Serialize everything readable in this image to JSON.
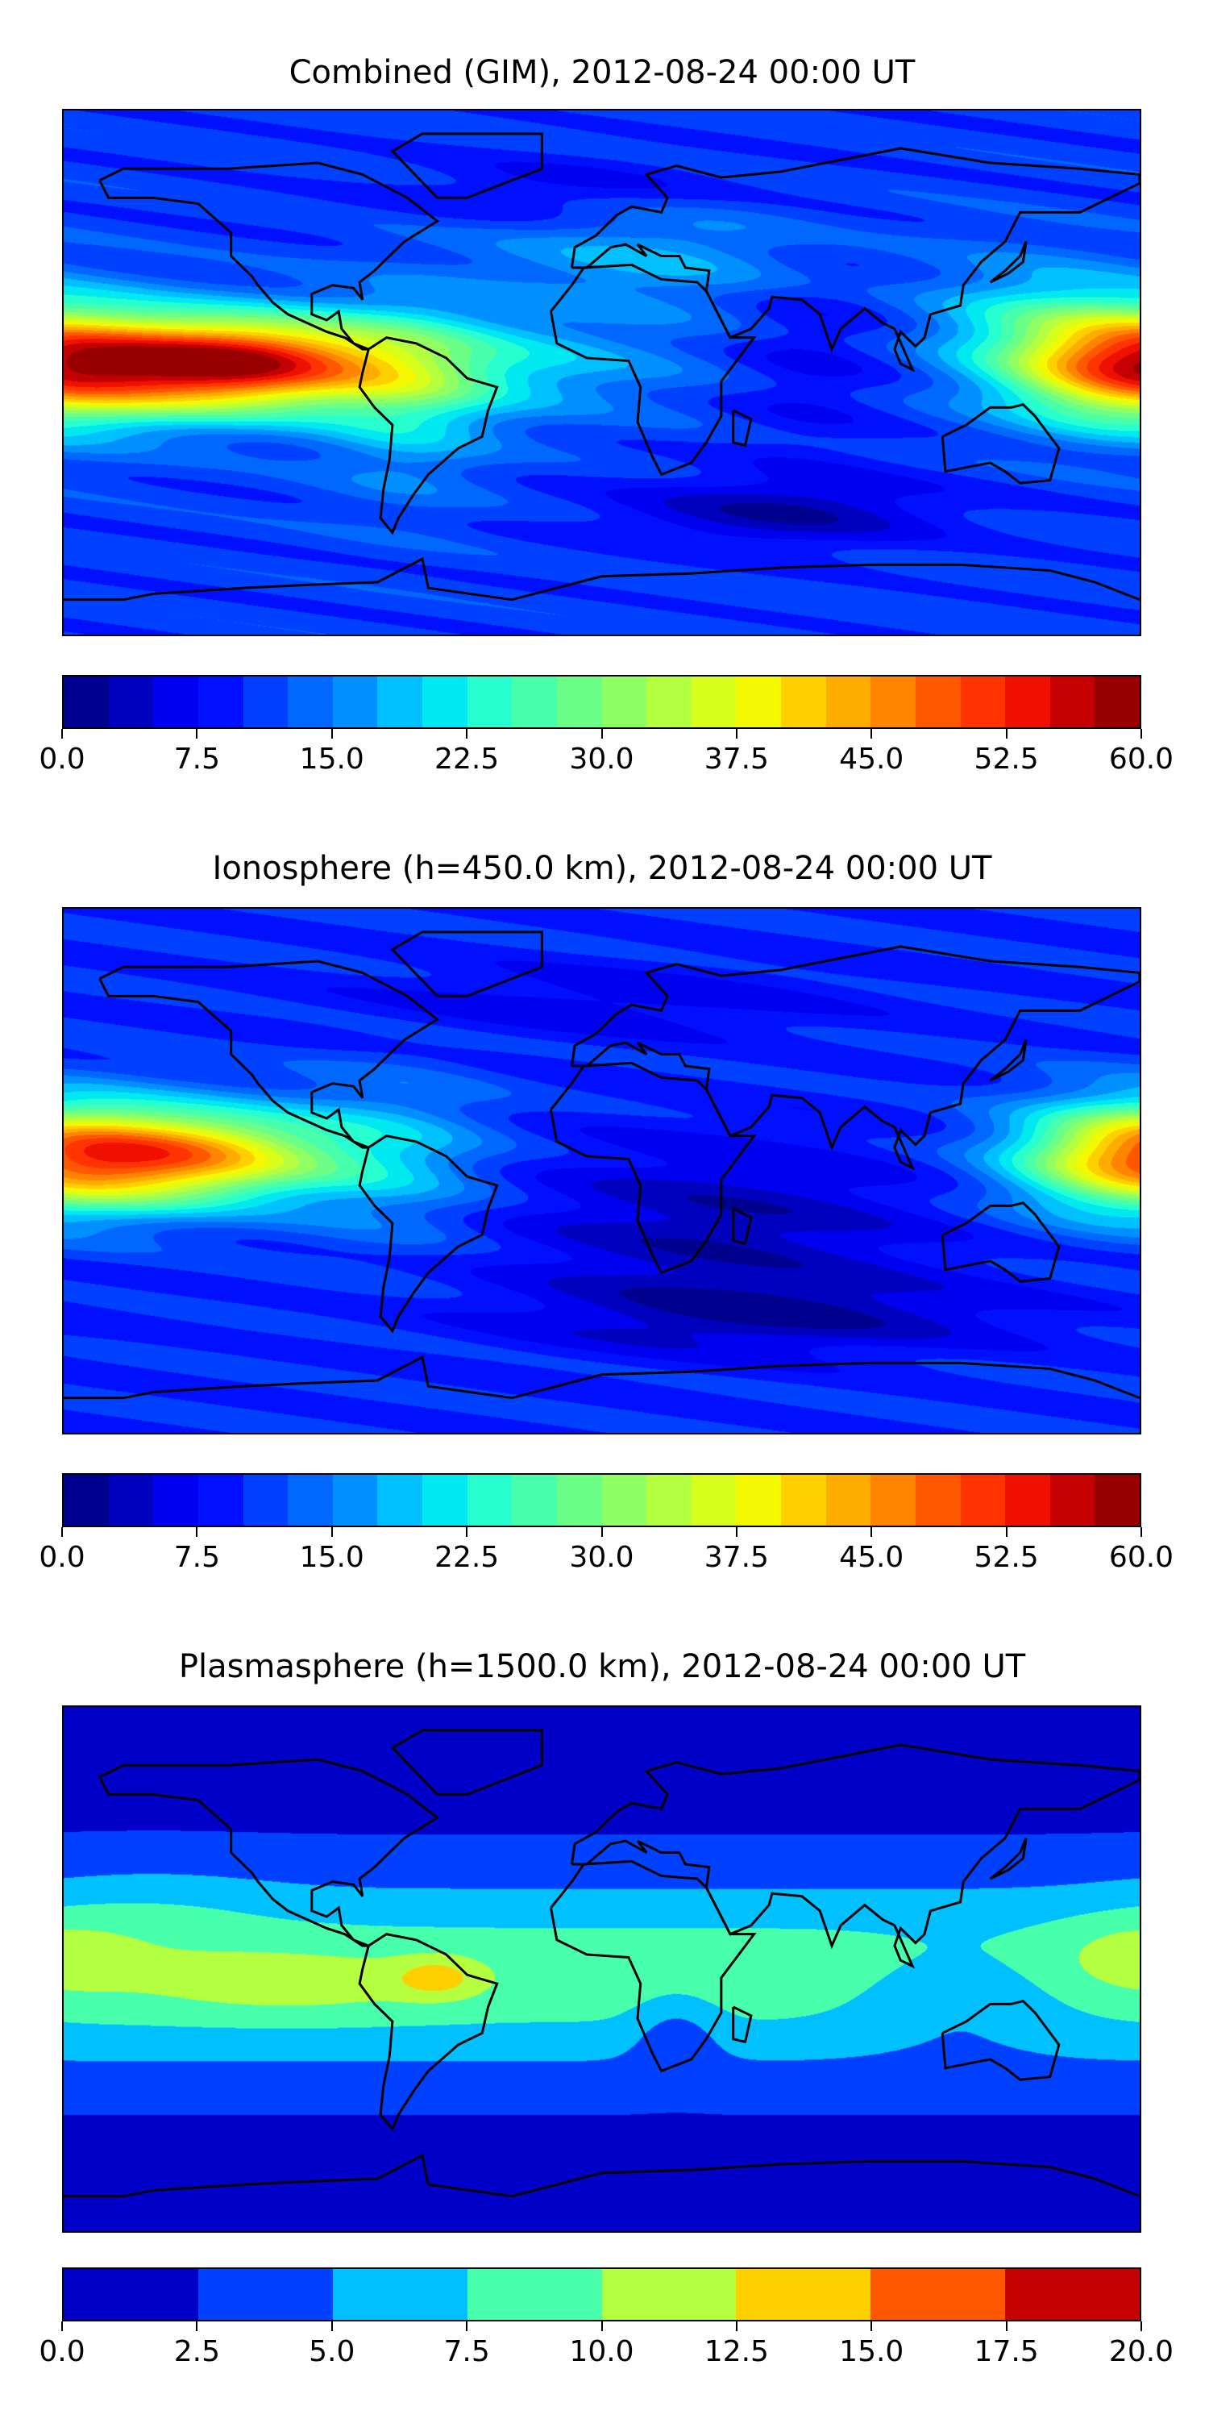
{
  "panels": [
    {
      "title": "Combined (GIM), 2012-08-24 00:00 UT",
      "colorbar": {
        "vmin": 0,
        "vmax": 60,
        "step": 2.5,
        "ticks": [
          "0.0",
          "7.5",
          "15.0",
          "22.5",
          "30.0",
          "37.5",
          "45.0",
          "52.5",
          "60.0"
        ],
        "colors": [
          "#00008f",
          "#0000bf",
          "#0000f0",
          "#0010ff",
          "#0040ff",
          "#0068ff",
          "#0090ff",
          "#00c0ff",
          "#00e8f0",
          "#28ffd0",
          "#48ffac",
          "#6cff88",
          "#90ff64",
          "#b4ff40",
          "#d8ff1c",
          "#f4f800",
          "#ffd000",
          "#ffac00",
          "#ff8400",
          "#ff5800",
          "#ff3400",
          "#f01000",
          "#c40000",
          "#980000"
        ]
      }
    },
    {
      "title": "Ionosphere  (h=450.0 km), 2012-08-24 00:00 UT",
      "colorbar": {
        "vmin": 0,
        "vmax": 60,
        "step": 2.5,
        "ticks": [
          "0.0",
          "7.5",
          "15.0",
          "22.5",
          "30.0",
          "37.5",
          "45.0",
          "52.5",
          "60.0"
        ],
        "colors": [
          "#00008f",
          "#0000bf",
          "#0000f0",
          "#0010ff",
          "#0040ff",
          "#0068ff",
          "#0090ff",
          "#00c0ff",
          "#00e8f0",
          "#28ffd0",
          "#48ffac",
          "#6cff88",
          "#90ff64",
          "#b4ff40",
          "#d8ff1c",
          "#f4f800",
          "#ffd000",
          "#ffac00",
          "#ff8400",
          "#ff5800",
          "#ff3400",
          "#f01000",
          "#c40000",
          "#980000"
        ]
      }
    },
    {
      "title": "Plasmasphere (h=1500.0 km), 2012-08-24 00:00 UT",
      "colorbar": {
        "vmin": 0,
        "vmax": 20,
        "step": 2.5,
        "ticks": [
          "0.0",
          "2.5",
          "5.0",
          "7.5",
          "10.0",
          "12.5",
          "15.0",
          "17.5",
          "20.0"
        ],
        "colors": [
          "#0000c8",
          "#0040ff",
          "#00c0ff",
          "#48ffac",
          "#b4ff40",
          "#ffd000",
          "#ff5800",
          "#c40000"
        ]
      }
    }
  ],
  "chart_data": [
    {
      "type": "heatmap",
      "title": "Combined (GIM), 2012-08-24 00:00 UT",
      "xlim": [
        -180,
        180
      ],
      "ylim": [
        -90,
        90
      ],
      "clim": [
        0,
        60
      ],
      "levels_step": 2.5,
      "features": "max ~55 near 125W 5N; secondary ~45 near 180E 5N; minimum ~2 near 60E 50S"
    },
    {
      "type": "heatmap",
      "title": "Ionosphere  (h=450.0 km), 2012-08-24 00:00 UT",
      "xlim": [
        -180,
        180
      ],
      "ylim": [
        -90,
        90
      ],
      "clim": [
        0,
        60
      ],
      "levels_step": 2.5,
      "features": "max ~45 near 140W 5N; ~35 near 180E; minimum ~2 over Africa / South Indian Ocean"
    },
    {
      "type": "heatmap",
      "title": "Plasmasphere (h=1500.0 km), 2012-08-24 00:00 UT",
      "xlim": [
        -180,
        180
      ],
      "ylim": [
        -90,
        90
      ],
      "clim": [
        0,
        20
      ],
      "levels_step": 2.5,
      "features": "equatorial band 7.5-12.5; max 12.5-15 over South America; 0-2.5 at high latitudes"
    }
  ]
}
